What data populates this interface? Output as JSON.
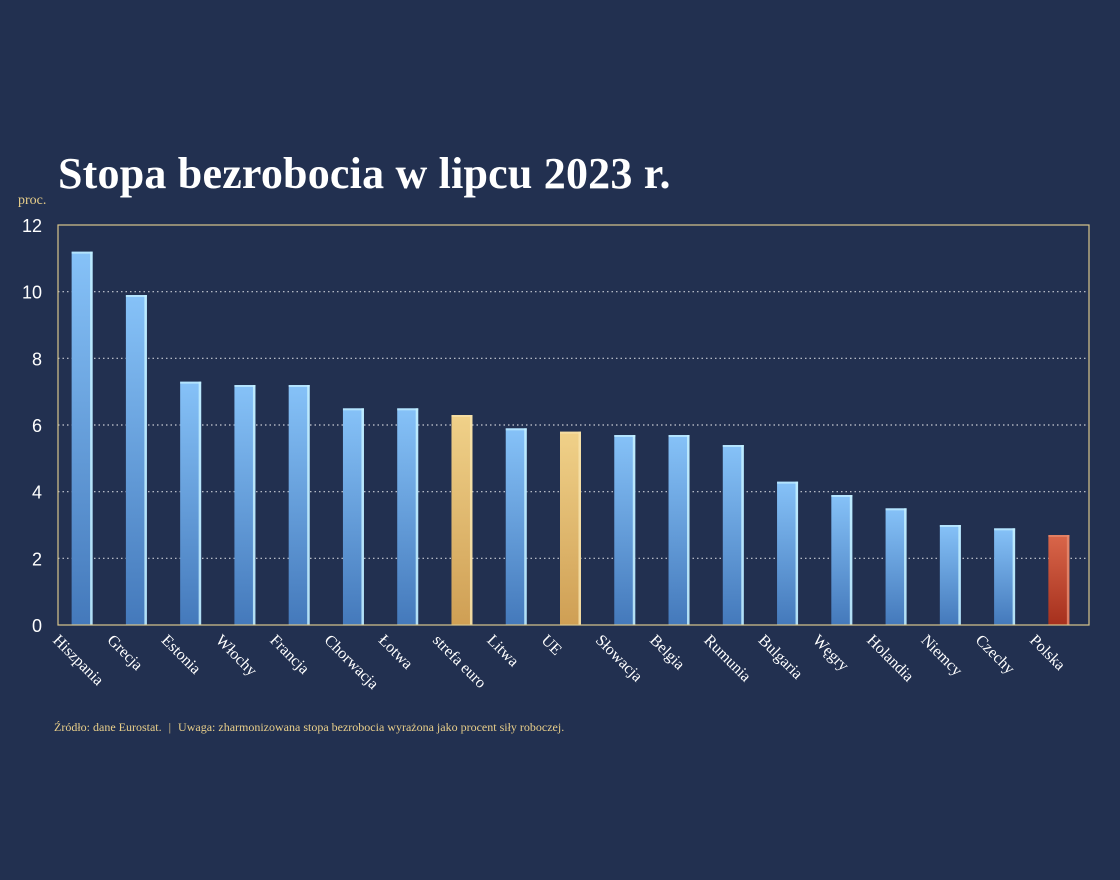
{
  "chart_data": {
    "type": "bar",
    "title": "Stopa bezrobocia w lipcu 2023 r.",
    "ylabel": "proc.",
    "xlabel": "",
    "ylim": [
      0,
      12
    ],
    "yticks": [
      0,
      2,
      4,
      6,
      8,
      10,
      12
    ],
    "grid": true,
    "categories": [
      "Hiszpania",
      "Grecja",
      "Estonia",
      "Włochy",
      "Francja",
      "Chorwacja",
      "Łotwa",
      "strefa euro",
      "Litwa",
      "UE",
      "Słowacja",
      "Belgia",
      "Rumunia",
      "Bulgaria",
      "Węgry",
      "Holandia",
      "Niemcy",
      "Czechy",
      "Polska"
    ],
    "values": [
      11.2,
      9.9,
      7.3,
      7.2,
      7.2,
      6.5,
      6.5,
      6.3,
      5.9,
      5.8,
      5.7,
      5.7,
      5.4,
      4.3,
      3.9,
      3.5,
      3.0,
      2.9,
      2.7
    ],
    "highlight": {
      "strefa euro": "aggregate",
      "UE": "aggregate",
      "Polska": "poland"
    },
    "colors": {
      "background": "#223050",
      "bar": "#6fa9ea",
      "aggregate": "#e1bd6e",
      "poland": "#c74a2c",
      "axis": "#d9c68c",
      "grid": "#c8cbd4"
    }
  },
  "footnote": {
    "source": "Źródło: dane Eurostat.",
    "separator": "|",
    "note": "Uwaga: zharmonizowana stopa bezrobocia wyrażona jako procent siły roboczej."
  }
}
